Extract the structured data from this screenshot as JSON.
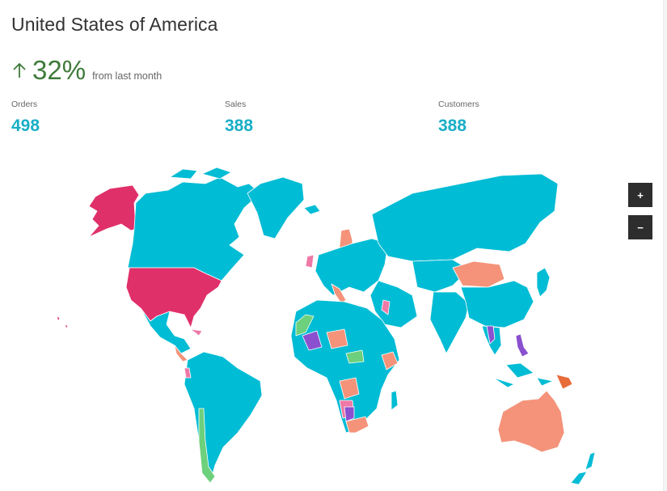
{
  "title": "United States of America",
  "trend": {
    "direction": "up",
    "value": "32%",
    "caption": "from last month",
    "color": "#3e7a3a"
  },
  "stats": [
    {
      "label": "Orders",
      "value": "498"
    },
    {
      "label": "Sales",
      "value": "388"
    },
    {
      "label": "Customers",
      "value": "388"
    }
  ],
  "map": {
    "type": "world-choropleth",
    "selected_region": "United States of America",
    "colors": {
      "default": "#00bcd4",
      "selected": "#e0306a",
      "salmon": "#f4937a",
      "pink": "#ef79a6",
      "green": "#6cd07c",
      "purple": "#8a50d0",
      "orange": "#e86b3a"
    }
  },
  "zoom": {
    "in_label": "+",
    "out_label": "−"
  }
}
